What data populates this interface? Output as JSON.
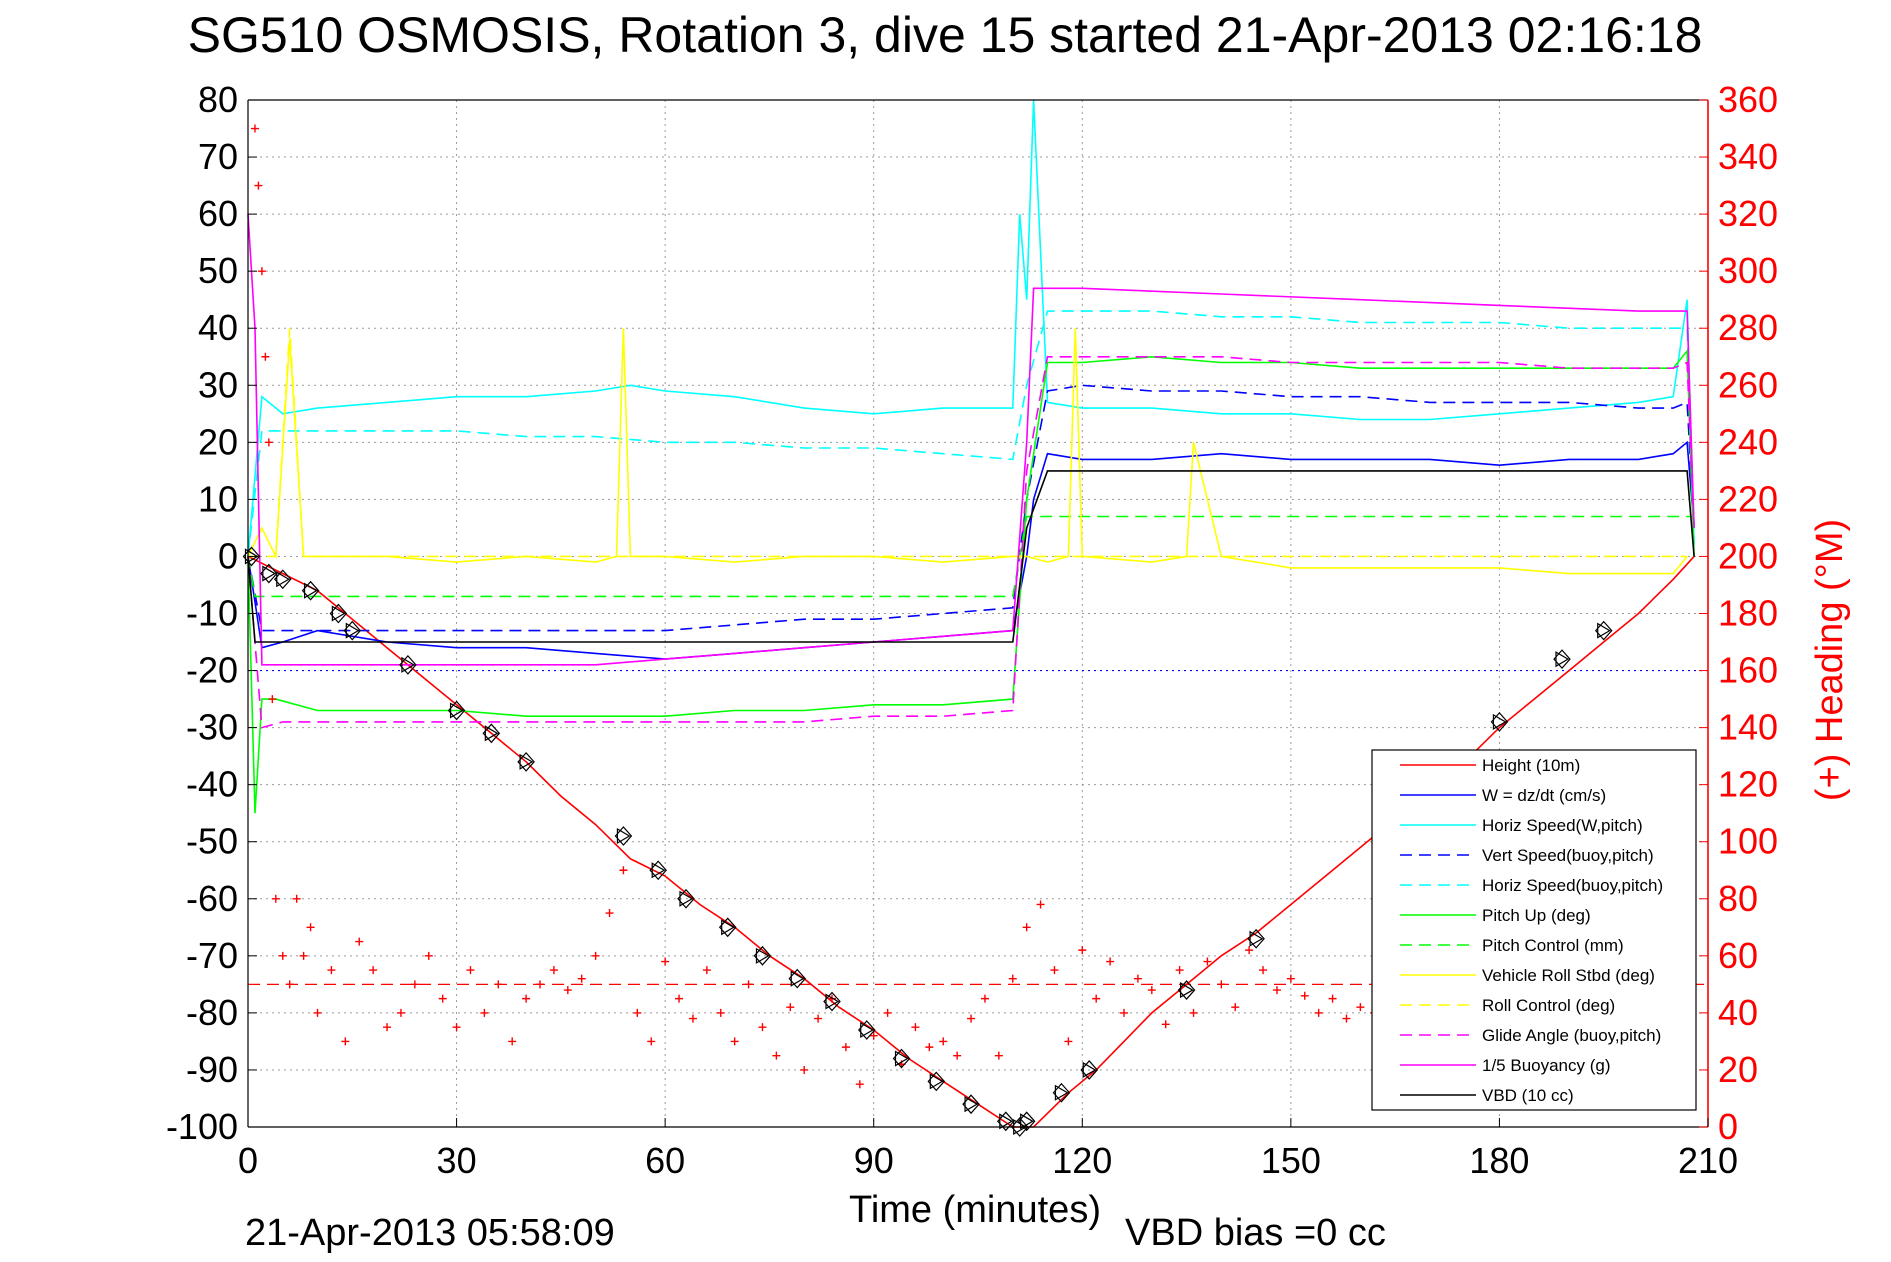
{
  "chart_data": {
    "type": "line",
    "title": "SG510 OSMOSIS, Rotation 3, dive 15 started 21-Apr-2013 02:16:18",
    "xlabel": "Time (minutes)",
    "ylabel_right": "(+) Heading (°M)",
    "xlim": [
      0,
      210
    ],
    "ylim": [
      -100,
      80
    ],
    "ylim_right": [
      0,
      360
    ],
    "x_ticks": [
      "0",
      "30",
      "60",
      "90",
      "120",
      "150",
      "180",
      "210"
    ],
    "y_ticks": [
      "80",
      "70",
      "60",
      "50",
      "40",
      "30",
      "20",
      "10",
      "0",
      "-10",
      "-20",
      "-30",
      "-40",
      "-50",
      "-60",
      "-70",
      "-80",
      "-90",
      "-100"
    ],
    "y_ticks_right": [
      "360",
      "340",
      "320",
      "300",
      "280",
      "260",
      "240",
      "220",
      "200",
      "180",
      "160",
      "140",
      "120",
      "100",
      "80",
      "60",
      "40",
      "20",
      "0"
    ],
    "grid": true,
    "legend_position": "bottom-right",
    "footer_date": "21-Apr-2013 05:58:09",
    "footer_bias": "VBD bias =0 cc",
    "series": [
      {
        "name": "Height (10m)",
        "color": "#ff0000",
        "style": "solid",
        "x": [
          0,
          5,
          10,
          15,
          20,
          25,
          30,
          35,
          40,
          45,
          50,
          55,
          60,
          65,
          70,
          75,
          80,
          85,
          90,
          95,
          100,
          105,
          110,
          113,
          118,
          122,
          126,
          130,
          135,
          140,
          145,
          150,
          155,
          160,
          165,
          170,
          175,
          180,
          185,
          190,
          195,
          200,
          205,
          208
        ],
        "values": [
          0,
          -3,
          -6,
          -11,
          -16,
          -21,
          -26,
          -31,
          -36,
          -42,
          -47,
          -53,
          -56,
          -61,
          -65,
          -70,
          -74,
          -79,
          -83,
          -88,
          -92,
          -96,
          -100,
          -100,
          -94,
          -90,
          -85,
          -80,
          -75,
          -70,
          -66,
          -61,
          -56,
          -51,
          -46,
          -41,
          -36,
          -30,
          -25,
          -20,
          -15,
          -10,
          -4,
          0
        ]
      },
      {
        "name": "W = dz/dt (cm/s)",
        "color": "#0000ff",
        "style": "solid",
        "x": [
          0,
          1,
          2,
          5,
          10,
          20,
          30,
          40,
          50,
          60,
          70,
          80,
          90,
          100,
          110,
          112,
          113,
          115,
          120,
          130,
          140,
          150,
          160,
          170,
          180,
          190,
          200,
          205,
          207,
          208
        ],
        "values": [
          0,
          -8,
          -16,
          -15,
          -13,
          -15,
          -16,
          -16,
          -17,
          -18,
          -17,
          -16,
          -15,
          -14,
          -13,
          0,
          10,
          18,
          17,
          17,
          18,
          17,
          17,
          17,
          16,
          17,
          17,
          18,
          20,
          5
        ]
      },
      {
        "name": "Horiz Speed(W,pitch)",
        "color": "#00ffff",
        "style": "solid",
        "x": [
          0,
          2,
          5,
          10,
          20,
          30,
          40,
          50,
          55,
          60,
          70,
          80,
          90,
          100,
          110,
          111,
          112,
          113,
          115,
          120,
          130,
          140,
          150,
          160,
          170,
          180,
          190,
          200,
          205,
          207,
          208
        ],
        "values": [
          0,
          28,
          25,
          26,
          27,
          28,
          28,
          29,
          30,
          29,
          28,
          26,
          25,
          26,
          26,
          60,
          45,
          80,
          27,
          26,
          26,
          25,
          25,
          24,
          24,
          25,
          26,
          27,
          28,
          45,
          2
        ]
      },
      {
        "name": "Vert Speed(buoy,pitch)",
        "color": "#0000ff",
        "style": "dashed",
        "x": [
          0,
          2,
          5,
          10,
          20,
          30,
          40,
          50,
          60,
          70,
          80,
          90,
          100,
          110,
          112,
          115,
          120,
          130,
          140,
          150,
          160,
          170,
          180,
          190,
          200,
          205,
          207,
          208
        ],
        "values": [
          0,
          -13,
          -13,
          -13,
          -13,
          -13,
          -13,
          -13,
          -13,
          -12,
          -11,
          -11,
          -10,
          -9,
          10,
          29,
          30,
          29,
          29,
          28,
          28,
          27,
          27,
          27,
          26,
          26,
          27,
          5
        ]
      },
      {
        "name": "Horiz Speed(buoy,pitch)",
        "color": "#00ffff",
        "style": "dashed",
        "x": [
          0,
          2,
          5,
          20,
          30,
          40,
          50,
          60,
          70,
          80,
          90,
          100,
          110,
          112,
          115,
          120,
          130,
          140,
          150,
          160,
          170,
          180,
          190,
          200,
          205,
          207,
          208
        ],
        "values": [
          0,
          22,
          22,
          22,
          22,
          21,
          21,
          20,
          20,
          19,
          19,
          18,
          17,
          30,
          43,
          43,
          43,
          42,
          42,
          41,
          41,
          41,
          40,
          40,
          40,
          40,
          5
        ]
      },
      {
        "name": "Pitch Up (deg)",
        "color": "#00ff00",
        "style": "solid",
        "x": [
          0,
          1,
          2,
          4,
          10,
          20,
          30,
          40,
          50,
          60,
          70,
          80,
          90,
          100,
          110,
          112,
          115,
          120,
          130,
          140,
          150,
          160,
          170,
          180,
          190,
          200,
          205,
          207,
          208
        ],
        "values": [
          0,
          -45,
          -25,
          -25,
          -27,
          -27,
          -27,
          -28,
          -28,
          -28,
          -27,
          -27,
          -26,
          -26,
          -25,
          10,
          34,
          34,
          35,
          34,
          34,
          33,
          33,
          33,
          33,
          33,
          33,
          36,
          0
        ]
      },
      {
        "name": "Pitch Control (mm)",
        "color": "#00ff00",
        "style": "dashed",
        "x": [
          0,
          1,
          2,
          20,
          40,
          60,
          80,
          100,
          110,
          112,
          115,
          120,
          140,
          160,
          180,
          200,
          207,
          208
        ],
        "values": [
          0,
          -7,
          -7,
          -7,
          -7,
          -7,
          -7,
          -7,
          -7,
          7,
          7,
          7,
          7,
          7,
          7,
          7,
          7,
          7
        ]
      },
      {
        "name": "Vehicle Roll Stbd (deg)",
        "color": "#ffff00",
        "style": "solid",
        "x": [
          0,
          2,
          4,
          6,
          8,
          12,
          20,
          30,
          40,
          50,
          53,
          54,
          55,
          60,
          70,
          80,
          90,
          100,
          110,
          112,
          115,
          118,
          119,
          120,
          130,
          135,
          136,
          140,
          150,
          160,
          170,
          180,
          190,
          200,
          205,
          207
        ],
        "values": [
          0,
          5,
          0,
          38,
          0,
          0,
          0,
          -1,
          0,
          -1,
          0,
          40,
          0,
          0,
          -1,
          0,
          0,
          -1,
          0,
          0,
          -1,
          0,
          40,
          0,
          -1,
          0,
          20,
          0,
          -2,
          -2,
          -2,
          -2,
          -3,
          -3,
          -3,
          0
        ]
      },
      {
        "name": "Roll Control (deg)",
        "color": "#ffff00",
        "style": "dashed",
        "x": [
          0,
          2,
          4,
          6,
          8,
          20,
          40,
          60,
          80,
          100,
          110,
          112,
          120,
          140,
          160,
          180,
          200,
          207
        ],
        "values": [
          0,
          0,
          0,
          40,
          0,
          0,
          0,
          0,
          0,
          0,
          0,
          0,
          0,
          0,
          0,
          0,
          0,
          0
        ]
      },
      {
        "name": "Glide Angle (buoy,pitch)",
        "color": "#ff00ff",
        "style": "dashed",
        "x": [
          0,
          2,
          5,
          10,
          20,
          30,
          40,
          50,
          60,
          70,
          80,
          90,
          100,
          110,
          112,
          115,
          120,
          130,
          140,
          150,
          160,
          170,
          180,
          190,
          200,
          205,
          207,
          208
        ],
        "values": [
          0,
          -30,
          -29,
          -29,
          -29,
          -29,
          -29,
          -29,
          -29,
          -29,
          -29,
          -28,
          -28,
          -27,
          15,
          35,
          35,
          35,
          35,
          34,
          34,
          34,
          34,
          33,
          33,
          33,
          34,
          5
        ]
      },
      {
        "name": "1/5 Buoyancy (g)",
        "color": "#ff00ff",
        "style": "solid",
        "x": [
          0,
          1,
          2,
          10,
          20,
          30,
          40,
          50,
          60,
          70,
          80,
          90,
          100,
          110,
          112,
          113,
          115,
          120,
          140,
          160,
          180,
          200,
          207,
          208
        ],
        "values": [
          60,
          40,
          -19,
          -19,
          -19,
          -19,
          -19,
          -19,
          -18,
          -17,
          -16,
          -15,
          -14,
          -13,
          20,
          47,
          47,
          47,
          46,
          45,
          44,
          43,
          43,
          5
        ]
      },
      {
        "name": "VBD (10 cc)",
        "color": "#000000",
        "style": "solid",
        "x": [
          0,
          1,
          2,
          20,
          40,
          60,
          80,
          100,
          110,
          112,
          115,
          120,
          140,
          160,
          180,
          200,
          207,
          208
        ],
        "values": [
          0,
          -15,
          -15,
          -15,
          -15,
          -15,
          -15,
          -15,
          -15,
          5,
          15,
          15,
          15,
          15,
          15,
          15,
          15,
          0
        ]
      }
    ],
    "heading": {
      "name": "Heading",
      "color": "#ff0000",
      "marker": "+",
      "axis": "right",
      "x": [
        1,
        1.5,
        2,
        2.5,
        3,
        3.5,
        4,
        5,
        6,
        7,
        8,
        9,
        10,
        12,
        14,
        16,
        18,
        20,
        22,
        24,
        26,
        28,
        30,
        32,
        34,
        36,
        38,
        40,
        42,
        44,
        46,
        48,
        50,
        52,
        54,
        56,
        58,
        60,
        62,
        64,
        66,
        68,
        70,
        72,
        74,
        76,
        78,
        80,
        82,
        84,
        86,
        88,
        90,
        92,
        94,
        96,
        98,
        100,
        102,
        104,
        106,
        108,
        110,
        112,
        114,
        116,
        118,
        120,
        122,
        124,
        126,
        128,
        130,
        132,
        134,
        136,
        138,
        140,
        142,
        144,
        146,
        148,
        150,
        152,
        154,
        156,
        158,
        160,
        162,
        164
      ],
      "values": [
        350,
        330,
        300,
        270,
        240,
        150,
        80,
        60,
        50,
        80,
        60,
        70,
        40,
        55,
        30,
        65,
        55,
        35,
        40,
        50,
        60,
        45,
        35,
        55,
        40,
        50,
        30,
        45,
        50,
        55,
        48,
        52,
        60,
        75,
        90,
        40,
        30,
        58,
        45,
        38,
        55,
        40,
        30,
        50,
        35,
        25,
        42,
        20,
        38,
        45,
        28,
        15,
        32,
        40,
        22,
        35,
        28,
        30,
        25,
        38,
        45,
        25,
        52,
        70,
        78,
        55,
        30,
        62,
        45,
        58,
        40,
        52,
        48,
        36,
        55,
        40,
        58,
        50,
        42,
        62,
        55,
        48,
        52,
        46,
        40,
        45,
        38,
        42,
        40,
        36
      ]
    },
    "heading_mean": {
      "value": 50,
      "color": "#ff0000",
      "style": "dashed",
      "axis": "right"
    },
    "reference_line": {
      "value": -20,
      "color": "#0000ff",
      "style": "dotted"
    },
    "markers": {
      "symbol": "triangle-diamond",
      "color": "#000000",
      "x": [
        0.5,
        3,
        5,
        9,
        13,
        15,
        23,
        30,
        35,
        40,
        54,
        59,
        63,
        69,
        74,
        79,
        84,
        89,
        94,
        99,
        104,
        109,
        111,
        112,
        117,
        121,
        135,
        145,
        180,
        189,
        195
      ],
      "values": [
        0,
        -3,
        -4,
        -6,
        -10,
        -13,
        -19,
        -27,
        -31,
        -36,
        -49,
        -55,
        -60,
        -65,
        -70,
        -74,
        -78,
        -83,
        -88,
        -92,
        -96,
        -99,
        -100,
        -99,
        -94,
        -90,
        -76,
        -67,
        -29,
        -18,
        -13
      ]
    }
  }
}
